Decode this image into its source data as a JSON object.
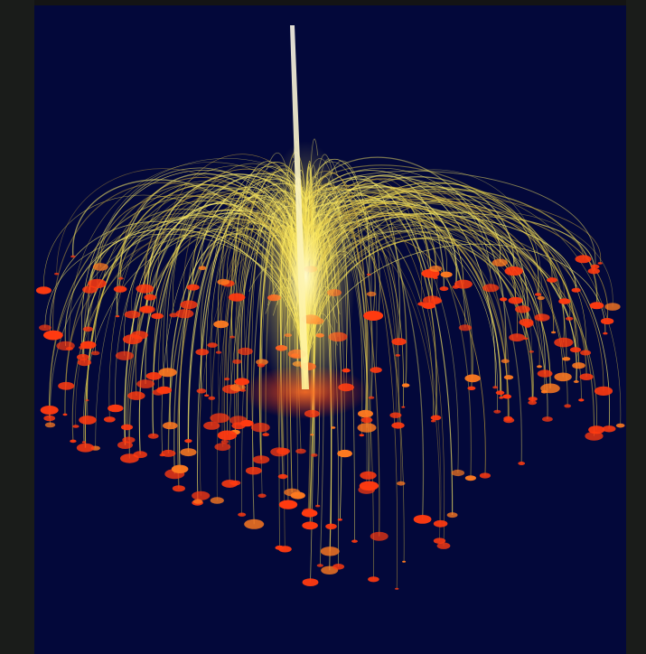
{
  "image": {
    "subject": "network-fountain",
    "colors": {
      "background": "#03083a",
      "arc_bright": "#fff06a",
      "arc_mid": "#e8d24a",
      "arc_dim": "#b99a3a",
      "node": "#ff3a10",
      "node_glow": "#ff7a20",
      "hub_stem": "#f4f0d8",
      "frame": "#1a1c1a"
    }
  }
}
